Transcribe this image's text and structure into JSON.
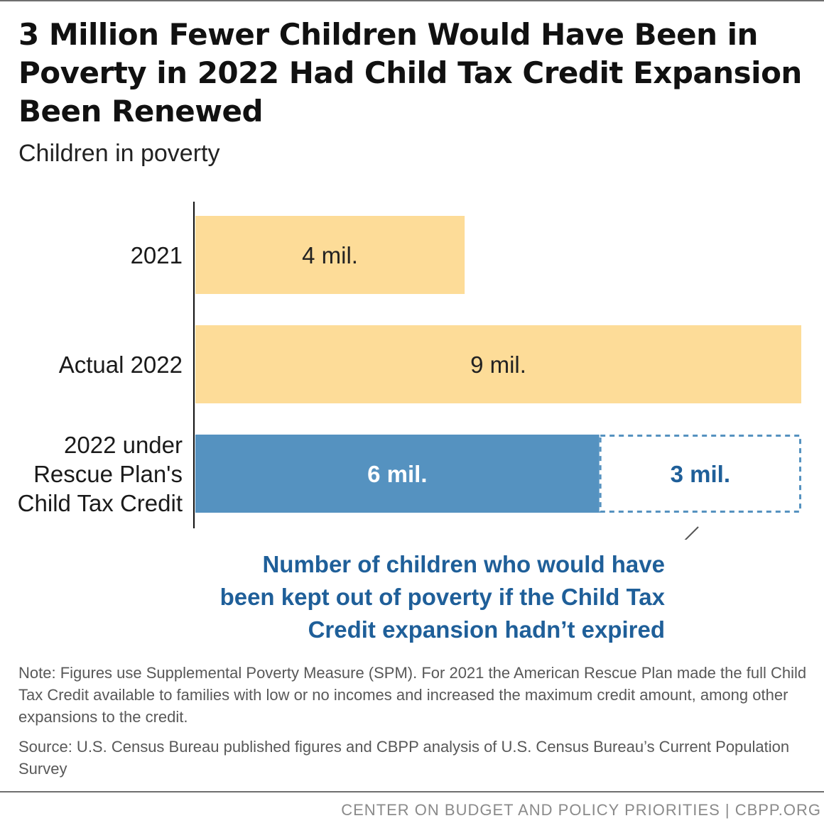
{
  "header": {
    "title": "3 Million Fewer Children Would Have Been in Poverty in 2022 Had Child Tax Credit Expansion Been Renewed",
    "subtitle": "Children in poverty"
  },
  "chart_data": {
    "type": "bar",
    "orientation": "horizontal",
    "title": "3 Million Fewer Children Would Have Been in Poverty in 2022 Had Child Tax Credit Expansion Been Renewed",
    "ylabel": "Children in poverty",
    "xlim": [
      0,
      9
    ],
    "categories": [
      [
        "2021"
      ],
      [
        "Actual 2022"
      ],
      [
        "2022 under",
        "Rescue Plan's",
        "Child Tax Credit"
      ]
    ],
    "series": [
      {
        "name": "Children in poverty",
        "values": [
          4,
          9,
          6
        ],
        "labels": [
          "4 mil.",
          "9 mil.",
          "6 mil."
        ],
        "colors": [
          "#fddc98",
          "#fddc98",
          "#5592c0"
        ],
        "label_colors": [
          "#222222",
          "#222222",
          "#ffffff"
        ]
      },
      {
        "name": "Number of children who would have been kept out of poverty",
        "values": [
          0,
          0,
          3
        ],
        "labels": [
          "",
          "",
          "3 mil."
        ],
        "style": "dashed-outline",
        "color": "#5592c0",
        "label_color": "#1f5f99"
      }
    ],
    "annotation": "Number of children who would have been kept out of poverty if the Child Tax Credit expansion hadn’t expired"
  },
  "notes": {
    "note": "Note: Figures use Supplemental Poverty Measure (SPM). For 2021 the American Rescue Plan made the full Child Tax Credit available to families with low or no incomes and increased the maximum credit amount, among other expansions to the credit.",
    "source": "Source: U.S. Census Bureau published figures and CBPP analysis of U.S. Census Bureau’s Current Population Survey"
  },
  "footer": {
    "credit": "CENTER ON BUDGET AND POLICY PRIORITIES | CBPP.ORG"
  }
}
